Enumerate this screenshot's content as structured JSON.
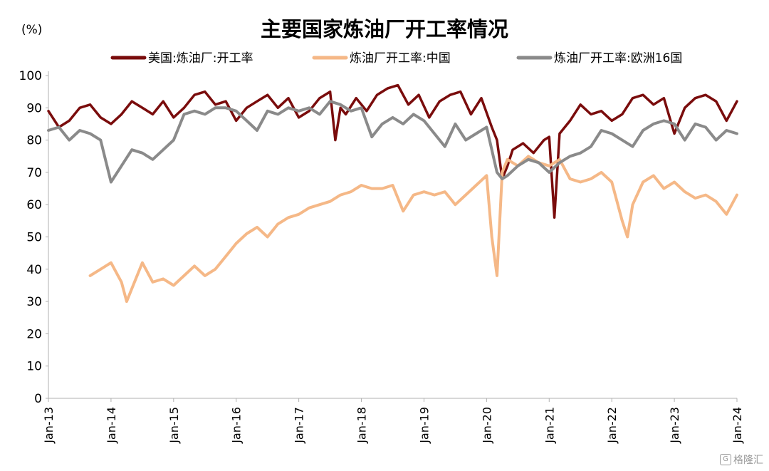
{
  "chart_data": {
    "type": "line",
    "title": "主要国家炼油厂开工率情况",
    "unit_label": "(%)",
    "ylim": [
      0,
      100
    ],
    "yticks": [
      0,
      10,
      20,
      30,
      40,
      50,
      60,
      70,
      80,
      90,
      100
    ],
    "xlim": [
      "2013-01",
      "2024-01"
    ],
    "xticks": [
      "Jan-13",
      "Jan-14",
      "Jan-15",
      "Jan-16",
      "Jan-17",
      "Jan-18",
      "Jan-19",
      "Jan-20",
      "Jan-21",
      "Jan-22",
      "Jan-23",
      "Jan-24"
    ],
    "legend_position": "top",
    "grid": false,
    "series": [
      {
        "name": "美国:炼油厂:开工率",
        "color": "#7a0c0c",
        "x": [
          "2013-01",
          "2013-03",
          "2013-05",
          "2013-07",
          "2013-09",
          "2013-11",
          "2014-01",
          "2014-03",
          "2014-05",
          "2014-07",
          "2014-09",
          "2014-11",
          "2015-01",
          "2015-03",
          "2015-05",
          "2015-07",
          "2015-09",
          "2015-11",
          "2016-01",
          "2016-03",
          "2016-05",
          "2016-07",
          "2016-09",
          "2016-11",
          "2017-01",
          "2017-03",
          "2017-05",
          "2017-07",
          "2017-08",
          "2017-09",
          "2017-10",
          "2017-12",
          "2018-02",
          "2018-04",
          "2018-06",
          "2018-08",
          "2018-10",
          "2018-12",
          "2019-02",
          "2019-04",
          "2019-06",
          "2019-08",
          "2019-10",
          "2019-12",
          "2020-02",
          "2020-03",
          "2020-04",
          "2020-05",
          "2020-06",
          "2020-08",
          "2020-10",
          "2020-12",
          "2021-01",
          "2021-02",
          "2021-03",
          "2021-05",
          "2021-07",
          "2021-09",
          "2021-11",
          "2022-01",
          "2022-03",
          "2022-05",
          "2022-07",
          "2022-09",
          "2022-11",
          "2023-01",
          "2023-03",
          "2023-05",
          "2023-07",
          "2023-09",
          "2023-11",
          "2024-01"
        ],
        "values": [
          89,
          84,
          86,
          90,
          91,
          87,
          85,
          88,
          92,
          90,
          88,
          92,
          87,
          90,
          94,
          95,
          91,
          92,
          86,
          90,
          92,
          94,
          90,
          93,
          87,
          89,
          93,
          95,
          80,
          90,
          88,
          93,
          89,
          94,
          96,
          97,
          91,
          94,
          87,
          92,
          94,
          95,
          88,
          93,
          84,
          80,
          68,
          72,
          77,
          79,
          76,
          80,
          81,
          56,
          82,
          86,
          91,
          88,
          89,
          86,
          88,
          93,
          94,
          91,
          93,
          82,
          90,
          93,
          94,
          92,
          86,
          92
        ]
      },
      {
        "name": "炼油厂开工率:中国",
        "color": "#f5b887",
        "x": [
          "2013-09",
          "2013-11",
          "2014-01",
          "2014-03",
          "2014-04",
          "2014-05",
          "2014-07",
          "2014-09",
          "2014-11",
          "2015-01",
          "2015-03",
          "2015-05",
          "2015-07",
          "2015-09",
          "2015-11",
          "2016-01",
          "2016-03",
          "2016-05",
          "2016-07",
          "2016-09",
          "2016-11",
          "2017-01",
          "2017-03",
          "2017-05",
          "2017-07",
          "2017-09",
          "2017-11",
          "2018-01",
          "2018-03",
          "2018-05",
          "2018-07",
          "2018-09",
          "2018-11",
          "2019-01",
          "2019-03",
          "2019-05",
          "2019-07",
          "2019-09",
          "2019-11",
          "2020-01",
          "2020-02",
          "2020-03",
          "2020-04",
          "2020-05",
          "2020-07",
          "2020-09",
          "2020-11",
          "2021-01",
          "2021-03",
          "2021-05",
          "2021-07",
          "2021-09",
          "2021-11",
          "2022-01",
          "2022-03",
          "2022-04",
          "2022-05",
          "2022-07",
          "2022-09",
          "2022-11",
          "2023-01",
          "2023-03",
          "2023-05",
          "2023-07",
          "2023-09",
          "2023-11",
          "2024-01"
        ],
        "values": [
          38,
          40,
          42,
          36,
          30,
          34,
          42,
          36,
          37,
          35,
          38,
          41,
          38,
          40,
          44,
          48,
          51,
          53,
          50,
          54,
          56,
          57,
          59,
          60,
          61,
          63,
          64,
          66,
          65,
          65,
          66,
          58,
          63,
          64,
          63,
          64,
          60,
          63,
          66,
          69,
          50,
          38,
          70,
          74,
          72,
          75,
          73,
          72,
          74,
          68,
          67,
          68,
          70,
          67,
          55,
          50,
          60,
          67,
          69,
          65,
          67,
          64,
          62,
          63,
          61,
          57,
          63
        ]
      },
      {
        "name": "炼油厂开工率:欧洲16国",
        "color": "#8a8a8a",
        "x": [
          "2013-01",
          "2013-03",
          "2013-05",
          "2013-07",
          "2013-09",
          "2013-11",
          "2014-01",
          "2014-03",
          "2014-05",
          "2014-07",
          "2014-09",
          "2014-11",
          "2015-01",
          "2015-03",
          "2015-05",
          "2015-07",
          "2015-09",
          "2015-11",
          "2016-01",
          "2016-03",
          "2016-05",
          "2016-07",
          "2016-09",
          "2016-11",
          "2017-01",
          "2017-03",
          "2017-05",
          "2017-07",
          "2017-09",
          "2017-11",
          "2018-01",
          "2018-03",
          "2018-05",
          "2018-07",
          "2018-09",
          "2018-11",
          "2019-01",
          "2019-03",
          "2019-05",
          "2019-07",
          "2019-09",
          "2019-11",
          "2020-01",
          "2020-03",
          "2020-04",
          "2020-05",
          "2020-07",
          "2020-09",
          "2020-11",
          "2021-01",
          "2021-03",
          "2021-05",
          "2021-07",
          "2021-09",
          "2021-11",
          "2022-01",
          "2022-03",
          "2022-05",
          "2022-07",
          "2022-09",
          "2022-11",
          "2023-01",
          "2023-03",
          "2023-05",
          "2023-07",
          "2023-09",
          "2023-11",
          "2024-01"
        ],
        "values": [
          83,
          84,
          80,
          83,
          82,
          80,
          67,
          72,
          77,
          76,
          74,
          77,
          80,
          88,
          89,
          88,
          90,
          90,
          89,
          86,
          83,
          89,
          88,
          90,
          89,
          90,
          88,
          92,
          91,
          89,
          90,
          81,
          85,
          87,
          85,
          88,
          86,
          82,
          78,
          85,
          80,
          82,
          84,
          70,
          68,
          69,
          72,
          74,
          73,
          70,
          73,
          75,
          76,
          78,
          83,
          82,
          80,
          78,
          83,
          85,
          86,
          85,
          80,
          85,
          84,
          80,
          83,
          82
        ]
      }
    ]
  },
  "watermark": {
    "mark": "G",
    "text": "格隆汇"
  }
}
